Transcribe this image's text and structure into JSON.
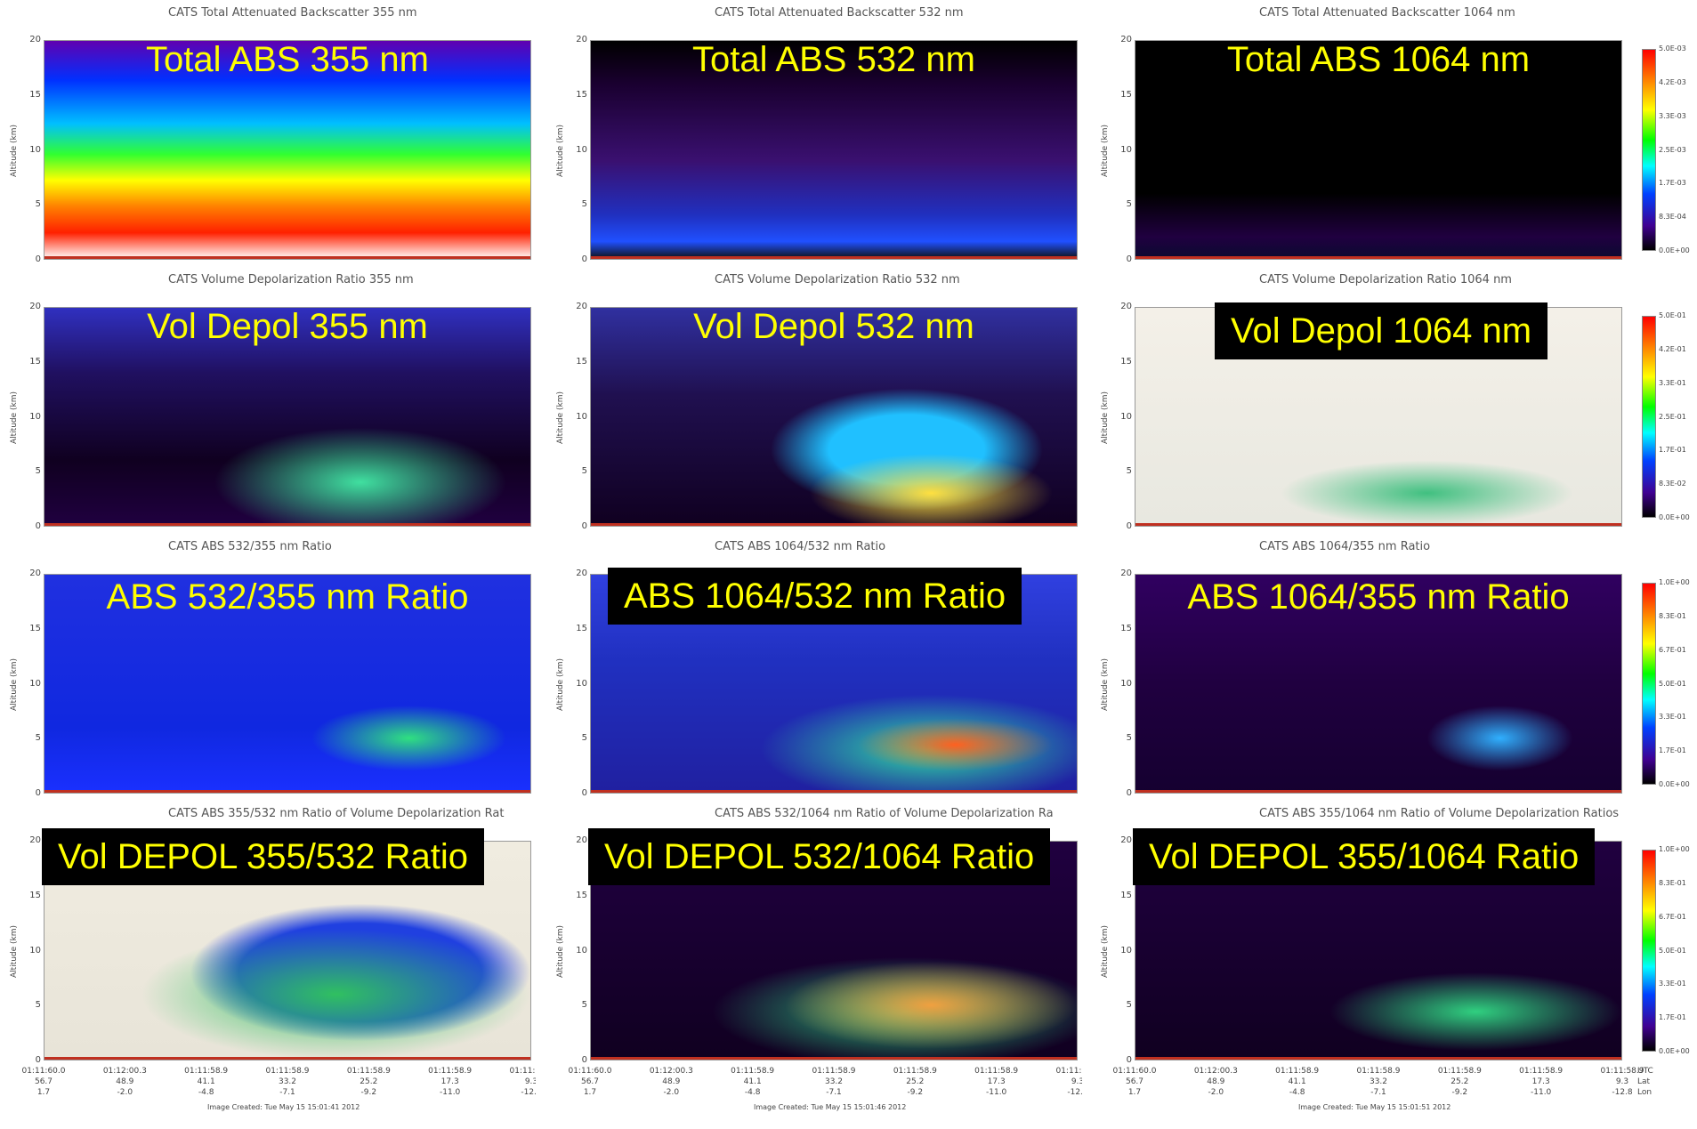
{
  "panels": [
    {
      "title": "CATS Total Attenuated Backscatter 355 nm",
      "label": "Total ABS 355 nm"
    },
    {
      "title": "CATS Total Attenuated Backscatter 532 nm",
      "label": "Total ABS 532 nm"
    },
    {
      "title": "CATS Total Attenuated Backscatter 1064 nm",
      "label": "Total ABS 1064 nm"
    },
    {
      "title": "CATS Volume Depolarization Ratio 355 nm",
      "label": "Vol Depol 355 nm"
    },
    {
      "title": "CATS Volume Depolarization Ratio 532 nm",
      "label": "Vol Depol 532 nm"
    },
    {
      "title": "CATS Volume Depolarization Ratio 1064 nm",
      "label": "Vol Depol 1064 nm"
    },
    {
      "title": "CATS ABS 532/355 nm Ratio",
      "label": "ABS 532/355 nm Ratio"
    },
    {
      "title": "CATS ABS 1064/532 nm Ratio",
      "label": "ABS 1064/532 nm Ratio"
    },
    {
      "title": "CATS ABS 1064/355 nm Ratio",
      "label": "ABS 1064/355 nm Ratio"
    },
    {
      "title": "CATS ABS 355/532 nm Ratio of Volume Depolarization Rat",
      "label": "Vol DEPOL 355/532 Ratio"
    },
    {
      "title": "CATS ABS 532/1064 nm Ratio of Volume Depolarization Ra",
      "label": "Vol DEPOL 532/1064 Ratio"
    },
    {
      "title": "CATS ABS 355/1064 nm Ratio of Volume Depolarization Ratios",
      "label": "Vol DEPOL 355/1064 Ratio"
    }
  ],
  "y_axis_label": "Altitude (km)",
  "y_ticks": [
    0,
    5,
    10,
    15,
    20
  ],
  "colorbars": [
    [
      "5.0E-03",
      "4.2E-03",
      "3.3E-03",
      "2.5E-03",
      "1.7E-03",
      "8.3E-04",
      "0.0E+00"
    ],
    [
      "5.0E-01",
      "4.2E-01",
      "3.3E-01",
      "2.5E-01",
      "1.7E-01",
      "8.3E-02",
      "0.0E+00"
    ],
    [
      "1.0E+00",
      "8.3E-01",
      "6.7E-01",
      "5.0E-01",
      "3.3E-01",
      "1.7E-01",
      "0.0E+00"
    ],
    [
      "1.0E+00",
      "8.3E-01",
      "6.7E-01",
      "5.0E-01",
      "3.3E-01",
      "1.7E-01",
      "0.0E+00"
    ]
  ],
  "x_axis": {
    "utc": [
      "01:11:60.0",
      "01:12:00.3",
      "01:11:58.9",
      "01:11:58.9",
      "01:11:58.9",
      "01:11:58.9",
      "01:11:58.9"
    ],
    "lat": [
      "56.7",
      "48.9",
      "41.1",
      "33.2",
      "25.2",
      "17.3",
      "9.3"
    ],
    "lon": [
      "1.7",
      "-2.0",
      "-4.8",
      "-7.1",
      "-9.2",
      "-11.0",
      "-12.8"
    ],
    "row_labels": [
      "UTC",
      "Lat",
      "Lon"
    ]
  },
  "image_created": [
    "Image Created: Tue May 15 15:01:41 2012",
    "Image Created: Tue May 15 15:01:46 2012",
    "Image Created: Tue May 15 15:01:51 2012"
  ]
}
